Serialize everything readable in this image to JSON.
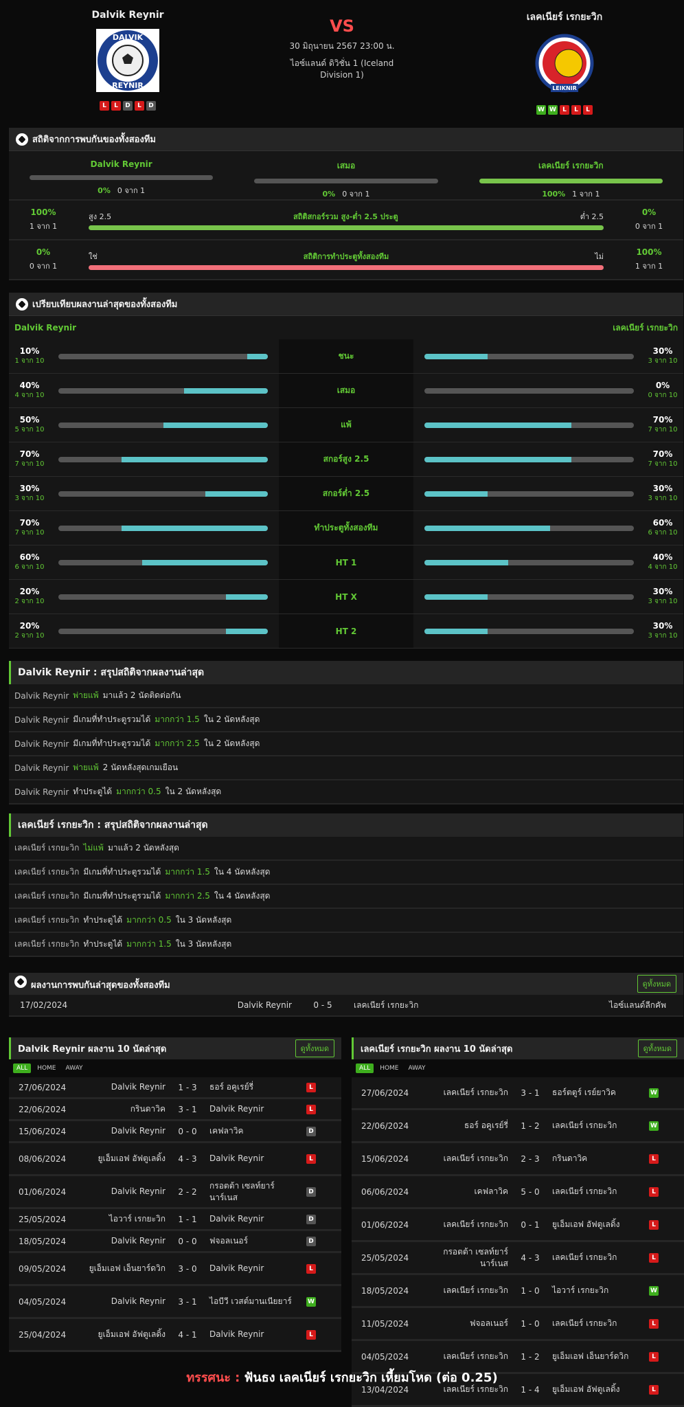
{
  "header": {
    "home": "Dalvik Reynir",
    "away": "เลคเนียร์ เรกยะวิก",
    "vs": "VS",
    "date": "30 มิถุนายน 2567 23:00 น.",
    "league": "ไอซ์แลนด์ ดิวิชั่น 1 (Iceland Division 1)",
    "home_form": [
      "L",
      "L",
      "D",
      "L",
      "D"
    ],
    "away_form": [
      "W",
      "W",
      "L",
      "L",
      "L"
    ]
  },
  "h2h_stats": {
    "title": "สถิติจากการพบกันของทั้งสองทีม",
    "home": {
      "label": "Dalvik Reynir",
      "pct": "0%",
      "count": "0 จาก 1",
      "fill": 0
    },
    "draw": {
      "label": "เสมอ",
      "pct": "0%",
      "count": "0 จาก 1",
      "fill": 0
    },
    "away": {
      "label": "เลคเนียร์ เรกยะวิก",
      "pct": "100%",
      "count": "1 จาก 1",
      "fill": 1
    },
    "goals": {
      "left_pct": "100%",
      "left_count": "1 จาก 1",
      "left_label": "สูง 2.5",
      "center": "สถิติสกอร์รวม สูง-ต่ำ 2.5 ประตู",
      "right_label": "ต่ำ 2.5",
      "right_pct": "0%",
      "right_count": "0 จาก 1",
      "fill": 1
    },
    "btts": {
      "left_pct": "0%",
      "left_count": "0 จาก 1",
      "left_label": "ใช่",
      "center": "สถิติการทำประตูทั้งสองทีม",
      "right_label": "ไม่",
      "right_pct": "100%",
      "right_count": "1 จาก 1",
      "fill": 1
    }
  },
  "compare": {
    "title": "เปรียบเทียบผลงานล่าสุดของทั้งสองทีม",
    "home": "Dalvik Reynir",
    "away": "เลคเนียร์ เรกยะวิก",
    "rows": [
      {
        "label": "ชนะ",
        "hp": "10%",
        "hc": "1 จาก 10",
        "hf": 0.1,
        "ap": "30%",
        "ac": "3 จาก 10",
        "af": 0.3
      },
      {
        "label": "เสมอ",
        "hp": "40%",
        "hc": "4 จาก 10",
        "hf": 0.4,
        "ap": "0%",
        "ac": "0 จาก 10",
        "af": 0
      },
      {
        "label": "แพ้",
        "hp": "50%",
        "hc": "5 จาก 10",
        "hf": 0.5,
        "ap": "70%",
        "ac": "7 จาก 10",
        "af": 0.7
      },
      {
        "label": "สกอร์สูง 2.5",
        "hp": "70%",
        "hc": "7 จาก 10",
        "hf": 0.7,
        "ap": "70%",
        "ac": "7 จาก 10",
        "af": 0.7
      },
      {
        "label": "สกอร์ต่ำ 2.5",
        "hp": "30%",
        "hc": "3 จาก 10",
        "hf": 0.3,
        "ap": "30%",
        "ac": "3 จาก 10",
        "af": 0.3
      },
      {
        "label": "ทำประตูทั้งสองทีม",
        "hp": "70%",
        "hc": "7 จาก 10",
        "hf": 0.7,
        "ap": "60%",
        "ac": "6 จาก 10",
        "af": 0.6
      },
      {
        "label": "HT 1",
        "hp": "60%",
        "hc": "6 จาก 10",
        "hf": 0.6,
        "ap": "40%",
        "ac": "4 จาก 10",
        "af": 0.4
      },
      {
        "label": "HT X",
        "hp": "20%",
        "hc": "2 จาก 10",
        "hf": 0.2,
        "ap": "30%",
        "ac": "3 จาก 10",
        "af": 0.3
      },
      {
        "label": "HT 2",
        "hp": "20%",
        "hc": "2 จาก 10",
        "hf": 0.2,
        "ap": "30%",
        "ac": "3 จาก 10",
        "af": 0.3
      }
    ]
  },
  "home_summary": {
    "title": "Dalvik Reynir : สรุปสถิติจากผลงานล่าสุด",
    "rows": [
      [
        "Dalvik Reynir",
        "พ่ายแพ้",
        "มาแล้ว 2 นัดติดต่อกัน"
      ],
      [
        "Dalvik Reynir",
        "มีเกมที่ทำประตูรวมได้",
        "มากกว่า 1.5",
        "ใน 2 นัดหลังสุด"
      ],
      [
        "Dalvik Reynir",
        "มีเกมที่ทำประตูรวมได้",
        "มากกว่า 2.5",
        "ใน 2 นัดหลังสุด"
      ],
      [
        "Dalvik Reynir",
        "พ่ายแพ้",
        "2 นัดหลังสุดเกมเยือน"
      ],
      [
        "Dalvik Reynir",
        "ทำประตูได้",
        "มากกว่า 0.5",
        "ใน 2 นัดหลังสุด"
      ]
    ]
  },
  "away_summary": {
    "title": "เลคเนียร์ เรกยะวิก : สรุปสถิติจากผลงานล่าสุด",
    "rows": [
      [
        "เลคเนียร์ เรกยะวิก",
        "ไม่แพ้",
        "มาแล้ว 2 นัดหลังสุด"
      ],
      [
        "เลคเนียร์ เรกยะวิก",
        "มีเกมที่ทำประตูรวมได้",
        "มากกว่า 1.5",
        "ใน 4 นัดหลังสุด"
      ],
      [
        "เลคเนียร์ เรกยะวิก",
        "มีเกมที่ทำประตูรวมได้",
        "มากกว่า 2.5",
        "ใน 4 นัดหลังสุด"
      ],
      [
        "เลคเนียร์ เรกยะวิก",
        "ทำประตูได้",
        "มากกว่า 0.5",
        "ใน 3 นัดหลังสุด"
      ],
      [
        "เลคเนียร์ เรกยะวิก",
        "ทำประตูได้",
        "มากกว่า 1.5",
        "ใน 3 นัดหลังสุด"
      ]
    ]
  },
  "last_h2h": {
    "title": "ผลงานการพบกันล่าสุดของทั้งสองทีม",
    "view_all": "ดูทั้งหมด",
    "date": "17/02/2024",
    "home": "Dalvik Reynir",
    "score": "0 - 5",
    "away": "เลคเนียร์ เรกยะวิก",
    "league": "ไอซ์แลนด์ลีกคัพ"
  },
  "home_last10": {
    "title": "Dalvik Reynir ผลงาน 10 นัดล่าสุด",
    "view_all": "ดูทั้งหมด",
    "filters": [
      "ALL",
      "HOME",
      "AWAY"
    ],
    "rows": [
      [
        "27/06/2024",
        "Dalvik Reynir",
        "1 - 3",
        "ธอร์ อคูเรย์รี่",
        "L"
      ],
      [
        "22/06/2024",
        "กรินดาวิค",
        "3 - 1",
        "Dalvik Reynir",
        "L"
      ],
      [
        "15/06/2024",
        "Dalvik Reynir",
        "0 - 0",
        "เคฟลาวิค",
        "D"
      ],
      [
        "08/06/2024",
        "ยูเอ็มเอฟ อัฟตูเลดิ้ง",
        "4 - 3",
        "Dalvik Reynir",
        "L"
      ],
      [
        "01/06/2024",
        "Dalvik Reynir",
        "2 - 2",
        "กรอตต้า เซลท์ยาร์นาร์เนส",
        "D"
      ],
      [
        "25/05/2024",
        "ไอวาร์ เรกยะวิก",
        "1 - 1",
        "Dalvik Reynir",
        "D"
      ],
      [
        "18/05/2024",
        "Dalvik Reynir",
        "0 - 0",
        "ฟจอลเนอร์",
        "D"
      ],
      [
        "09/05/2024",
        "ยูเอ็มเอฟ เอ็นยาร์ดวิก",
        "3 - 0",
        "Dalvik Reynir",
        "L"
      ],
      [
        "04/05/2024",
        "Dalvik Reynir",
        "3 - 1",
        "ไอบีวี เวสต์มานเนียยาร์",
        "W"
      ],
      [
        "25/04/2024",
        "ยูเอ็มเอฟ อัฟตูเลดิ้ง",
        "4 - 1",
        "Dalvik Reynir",
        "L"
      ]
    ]
  },
  "away_last10": {
    "title": "เลคเนียร์ เรกยะวิก ผลงาน 10 นัดล่าสุด",
    "view_all": "ดูทั้งหมด",
    "filters": [
      "ALL",
      "HOME",
      "AWAY"
    ],
    "rows": [
      [
        "27/06/2024",
        "เลคเนียร์ เรกยะวิก",
        "3 - 1",
        "ธอร์ตตูร์ เรย์ยาวิค",
        "W"
      ],
      [
        "22/06/2024",
        "ธอร์ อคูเรย์รี่",
        "1 - 2",
        "เลคเนียร์ เรกยะวิก",
        "W"
      ],
      [
        "15/06/2024",
        "เลคเนียร์ เรกยะวิก",
        "2 - 3",
        "กรินดาวิค",
        "L"
      ],
      [
        "06/06/2024",
        "เคฟลาวิค",
        "5 - 0",
        "เลคเนียร์ เรกยะวิก",
        "L"
      ],
      [
        "01/06/2024",
        "เลคเนียร์ เรกยะวิก",
        "0 - 1",
        "ยูเอ็มเอฟ อัฟตูเลดิ้ง",
        "L"
      ],
      [
        "25/05/2024",
        "กรอตต้า เซลท์ยาร์นาร์เนส",
        "4 - 3",
        "เลคเนียร์ เรกยะวิก",
        "L"
      ],
      [
        "18/05/2024",
        "เลคเนียร์ เรกยะวิก",
        "1 - 0",
        "ไอวาร์ เรกยะวิก",
        "W"
      ],
      [
        "11/05/2024",
        "ฟจอลเนอร์",
        "1 - 0",
        "เลคเนียร์ เรกยะวิก",
        "L"
      ],
      [
        "04/05/2024",
        "เลคเนียร์ เรกยะวิก",
        "1 - 2",
        "ยูเอ็มเอฟ เอ็นยาร์ดวิก",
        "L"
      ],
      [
        "13/04/2024",
        "เลคเนียร์ เรกยะวิก",
        "1 - 4",
        "ยูเอ็มเอฟ อัฟตูเลดิ้ง",
        "L"
      ]
    ]
  },
  "verdict": {
    "label": "ทรรศนะ :",
    "text": "ฟันธง เลคเนียร์ เรกยะวิก เหี้ยมโหด (ต่อ 0.25)"
  }
}
